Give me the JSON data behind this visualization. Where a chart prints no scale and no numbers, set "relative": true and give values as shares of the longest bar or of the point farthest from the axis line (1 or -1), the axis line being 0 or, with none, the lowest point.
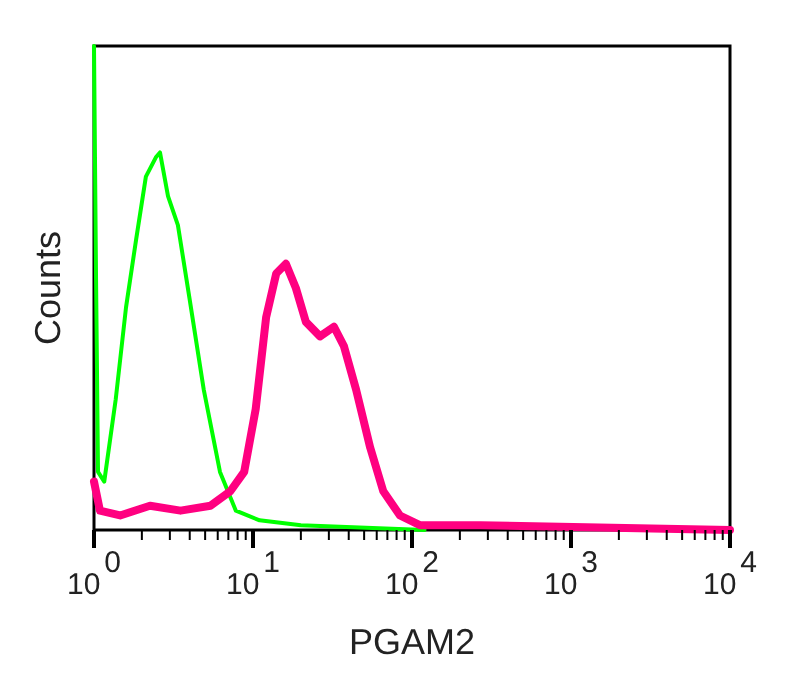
{
  "chart_data": {
    "type": "line",
    "xlabel": "PGAM2",
    "ylabel": "Counts",
    "relative": true,
    "log": "x",
    "xlim": [
      1,
      10000
    ],
    "xticks": [
      {
        "value": 1,
        "label": "10$^{0}$"
      },
      {
        "value": 2,
        "label": null
      },
      {
        "value": 3,
        "label": null
      },
      {
        "value": 4,
        "label": null
      },
      {
        "value": 5,
        "label": null
      },
      {
        "value": 6,
        "label": null
      },
      {
        "value": 7,
        "label": null
      },
      {
        "value": 8,
        "label": null
      },
      {
        "value": 9,
        "label": null
      },
      {
        "value": 10,
        "label": "10$^{1}$"
      },
      {
        "value": 20,
        "label": null
      },
      {
        "value": 30,
        "label": null
      },
      {
        "value": 40,
        "label": null
      },
      {
        "value": 50,
        "label": null
      },
      {
        "value": 60,
        "label": null
      },
      {
        "value": 70,
        "label": null
      },
      {
        "value": 80,
        "label": null
      },
      {
        "value": 90,
        "label": null
      },
      {
        "value": 100,
        "label": "10$^{2}$"
      },
      {
        "value": 200,
        "label": null
      },
      {
        "value": 300,
        "label": null
      },
      {
        "value": 400,
        "label": null
      },
      {
        "value": 500,
        "label": null
      },
      {
        "value": 600,
        "label": null
      },
      {
        "value": 700,
        "label": null
      },
      {
        "value": 800,
        "label": null
      },
      {
        "value": 900,
        "label": null
      },
      {
        "value": 1000,
        "label": "10$^{3}$"
      },
      {
        "value": 2000,
        "label": null
      },
      {
        "value": 3000,
        "label": null
      },
      {
        "value": 4000,
        "label": null
      },
      {
        "value": 5000,
        "label": null
      },
      {
        "value": 6000,
        "label": null
      },
      {
        "value": 7000,
        "label": null
      },
      {
        "value": 8000,
        "label": null
      },
      {
        "value": 9000,
        "label": null
      },
      {
        "value": 10000,
        "label": "10$^{4}$"
      }
    ],
    "series": [
      {
        "color": "#00ff00",
        "x": [
          1,
          1.03,
          1.06,
          1.16,
          1.37,
          1.59,
          1.84,
          2.12,
          2.45,
          2.6,
          2.92,
          3.37,
          3.98,
          4.9,
          6.2,
          7.8,
          11,
          20,
          120
        ],
        "values": [
          1,
          0.52,
          0.12,
          0.1,
          0.27,
          0.46,
          0.6,
          0.73,
          0.77,
          0.78,
          0.69,
          0.63,
          0.48,
          0.29,
          0.12,
          0.04,
          0.02,
          0.01,
          0
        ]
      },
      {
        "color": "#ff0080",
        "x": [
          1,
          1.09,
          1.46,
          2.25,
          3.5,
          5.4,
          7.2,
          8.8,
          10.4,
          12.1,
          14,
          16.1,
          18.6,
          21.5,
          26.4,
          32.3,
          37.3,
          44.5,
          54.6,
          66,
          84,
          112,
          270,
          10000
        ],
        "values": [
          0.1,
          0.04,
          0.03,
          0.05,
          0.04,
          0.05,
          0.08,
          0.12,
          0.25,
          0.44,
          0.53,
          0.55,
          0.5,
          0.43,
          0.4,
          0.42,
          0.38,
          0.29,
          0.17,
          0.08,
          0.03,
          0.01,
          0.01,
          0
        ]
      }
    ]
  }
}
